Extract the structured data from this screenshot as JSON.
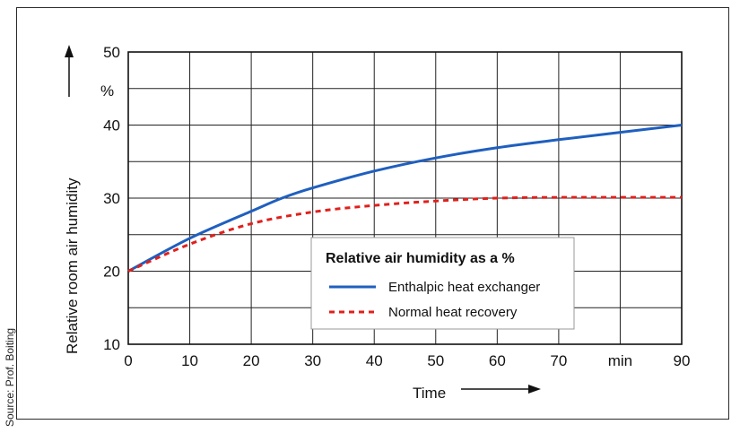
{
  "source": "Source: Prof. Boiting",
  "chart_data": {
    "type": "line",
    "title": "",
    "xlabel": "Time",
    "ylabel": "Relative room air humidity",
    "y_unit": "%",
    "x_unit": "min",
    "xlim": [
      0,
      90
    ],
    "ylim": [
      10,
      50
    ],
    "x_ticks": [
      "0",
      "10",
      "20",
      "30",
      "40",
      "50",
      "60",
      "70",
      "min",
      "90"
    ],
    "y_ticks": [
      "10",
      "20",
      "30",
      "40",
      "50"
    ],
    "grid": true,
    "legend_title": "Relative air humidity as a %",
    "legend_position": "center-right",
    "series": [
      {
        "name": "Enthalpic heat exchanger",
        "color": "#1f5fbf",
        "style": "solid",
        "x": [
          0,
          10,
          20,
          25,
          30,
          40,
          50,
          60,
          70,
          80,
          90
        ],
        "y": [
          20,
          24.5,
          28.2,
          30,
          31.4,
          33.7,
          35.5,
          36.9,
          38.0,
          39.0,
          40.0
        ]
      },
      {
        "name": "Normal heat recovery",
        "color": "#e0201c",
        "style": "dashed",
        "x": [
          0,
          10,
          20,
          30,
          40,
          50,
          60,
          70,
          80,
          90
        ],
        "y": [
          20,
          23.7,
          26.5,
          28.1,
          29.0,
          29.6,
          30.0,
          30.1,
          30.1,
          30.1
        ]
      }
    ]
  }
}
